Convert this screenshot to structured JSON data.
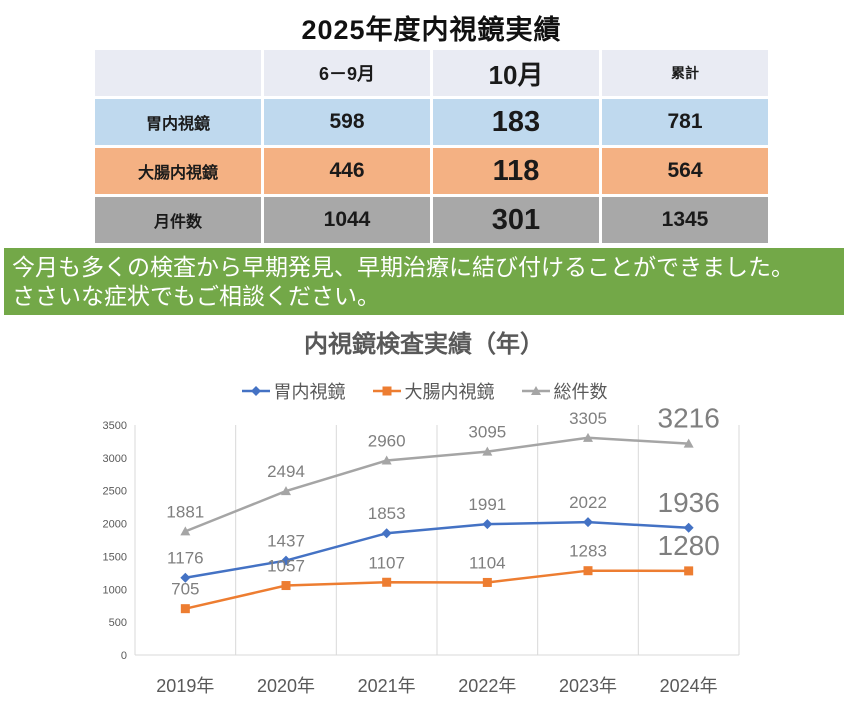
{
  "page": {
    "title": "2025年度内視鏡実績"
  },
  "table": {
    "headers": {
      "col1": "",
      "col2": "6－9月",
      "col3": "10月",
      "col4": "累計"
    },
    "rows": [
      {
        "label": "胃内視鏡",
        "v1": "598",
        "v2": "183",
        "v3": "781",
        "row_color": "#bfd9ee"
      },
      {
        "label": "大腸内視鏡",
        "v1": "446",
        "v2": "118",
        "v3": "564",
        "row_color": "#f4b183"
      },
      {
        "label": "月件数",
        "v1": "1044",
        "v2": "301",
        "v3": "1345",
        "row_color": "#a8a8a8"
      }
    ]
  },
  "banner": {
    "line1": "今月も多くの検査から早期発見、早期治療に結び付けることができました。",
    "line2": "ささいな症状でもご相談ください。",
    "background": "#73a848",
    "text_color": "#ffffff"
  },
  "chart_data": {
    "type": "line",
    "title": "内視鏡検査実績（年）",
    "categories": [
      "2019年",
      "2020年",
      "2021年",
      "2022年",
      "2023年",
      "2024年"
    ],
    "series": [
      {
        "name": "胃内視鏡",
        "color": "#4472c4",
        "marker": "diamond",
        "values": [
          1176,
          1437,
          1853,
          1991,
          2022,
          1936
        ]
      },
      {
        "name": "大腸内視鏡",
        "color": "#ed7d31",
        "marker": "square",
        "values": [
          705,
          1057,
          1107,
          1104,
          1283,
          1280
        ]
      },
      {
        "name": "総件数",
        "color": "#a5a5a5",
        "marker": "triangle",
        "values": [
          1881,
          2494,
          2960,
          3095,
          3305,
          3216
        ]
      }
    ],
    "ylim": [
      0,
      3500
    ],
    "ytick_step": 500,
    "grid": "vertical-only",
    "grid_color": "#d9d9d9",
    "axis_text_color": "#595959",
    "data_label_color": "#7f7f7f",
    "data_labels": true,
    "last_point_labels_enlarged": true,
    "legend_position": "top"
  }
}
